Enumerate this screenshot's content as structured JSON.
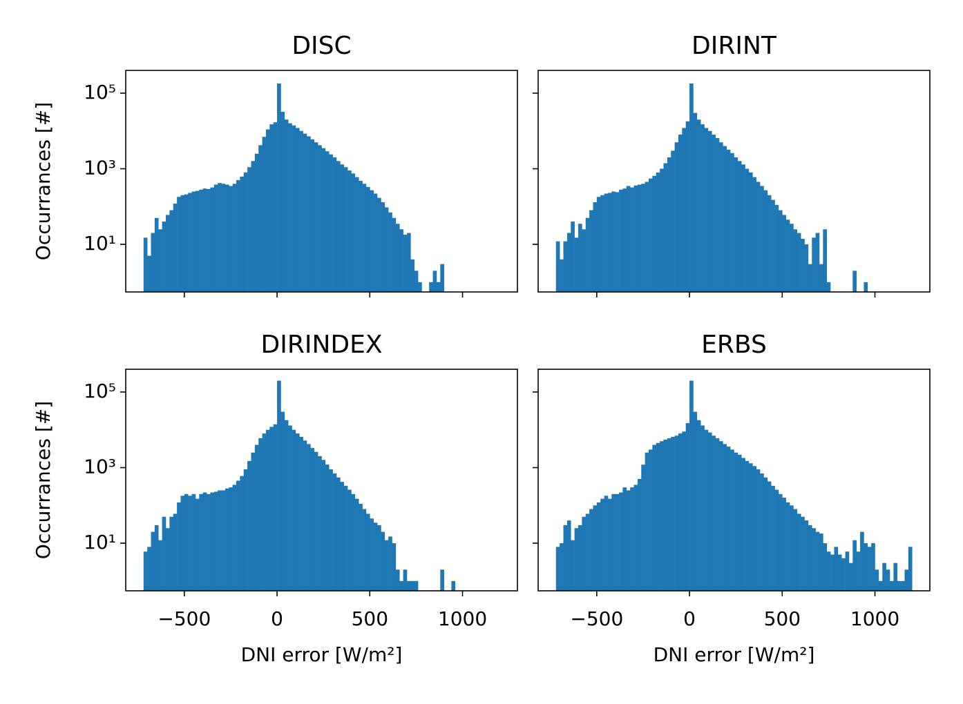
{
  "chart_data": [
    {
      "type": "histogram",
      "title": "DISC",
      "ylabel": "Occurrances [#]",
      "yscale": "log",
      "color": "#1f77b4",
      "xlim": [
        -816,
        1296
      ],
      "ylim": [
        0.55,
        400000
      ],
      "yticks": [
        {
          "value": 10,
          "label": "10¹"
        },
        {
          "value": 1000,
          "label": "10³"
        },
        {
          "value": 100000,
          "label": "10⁵"
        }
      ],
      "bins": [
        -720,
        -700,
        -680,
        -660,
        -640,
        -620,
        -600,
        -580,
        -560,
        -540,
        -520,
        -500,
        -480,
        -460,
        -440,
        -420,
        -400,
        -380,
        -360,
        -340,
        -320,
        -300,
        -280,
        -260,
        -240,
        -220,
        -200,
        -180,
        -160,
        -140,
        -120,
        -100,
        -80,
        -60,
        -40,
        -20,
        0,
        20,
        40,
        60,
        80,
        100,
        120,
        140,
        160,
        180,
        200,
        220,
        240,
        260,
        280,
        300,
        320,
        340,
        360,
        380,
        400,
        420,
        440,
        460,
        480,
        500,
        520,
        540,
        560,
        580,
        600,
        620,
        640,
        660,
        680,
        700,
        720,
        740,
        760,
        780,
        800,
        820,
        840,
        860,
        880,
        900,
        920,
        940,
        960,
        980,
        1000,
        1020,
        1040,
        1060,
        1080,
        1100,
        1120,
        1140,
        1160,
        1180,
        1200
      ],
      "values": [
        15,
        5,
        20,
        50,
        25,
        40,
        60,
        80,
        120,
        180,
        200,
        210,
        230,
        250,
        260,
        280,
        300,
        290,
        320,
        380,
        420,
        400,
        380,
        350,
        400,
        500,
        620,
        800,
        1100,
        1600,
        2500,
        4200,
        7000,
        11000,
        15000,
        17000,
        180000,
        32000,
        20000,
        16000,
        14000,
        12000,
        10000,
        8500,
        7200,
        6000,
        5000,
        4200,
        3500,
        2900,
        2400,
        2000,
        1600,
        1300,
        1100,
        900,
        750,
        600,
        480,
        400,
        330,
        270,
        220,
        170,
        130,
        95,
        70,
        50,
        35,
        25,
        18,
        20,
        4,
        2,
        1,
        0,
        0,
        1,
        2,
        1,
        3,
        0,
        0,
        0,
        0,
        0,
        0,
        0,
        0,
        0,
        0,
        0,
        0,
        0,
        0,
        0
      ]
    },
    {
      "type": "histogram",
      "title": "DIRINT",
      "yscale": "log",
      "color": "#1f77b4",
      "xlim": [
        -816,
        1296
      ],
      "ylim": [
        0.55,
        400000
      ],
      "bins": [
        -720,
        -700,
        -680,
        -660,
        -640,
        -620,
        -600,
        -580,
        -560,
        -540,
        -520,
        -500,
        -480,
        -460,
        -440,
        -420,
        -400,
        -380,
        -360,
        -340,
        -320,
        -300,
        -280,
        -260,
        -240,
        -220,
        -200,
        -180,
        -160,
        -140,
        -120,
        -100,
        -80,
        -60,
        -40,
        -20,
        0,
        20,
        40,
        60,
        80,
        100,
        120,
        140,
        160,
        180,
        200,
        220,
        240,
        260,
        280,
        300,
        320,
        340,
        360,
        380,
        400,
        420,
        440,
        460,
        480,
        500,
        520,
        540,
        560,
        580,
        600,
        620,
        640,
        660,
        680,
        700,
        720,
        740,
        760,
        780,
        800,
        820,
        840,
        860,
        880,
        900,
        920,
        940,
        960,
        980,
        1000,
        1020,
        1040,
        1060,
        1080,
        1100,
        1120,
        1140,
        1160,
        1180,
        1200
      ],
      "values": [
        12,
        4,
        12,
        20,
        40,
        15,
        35,
        25,
        50,
        80,
        130,
        180,
        200,
        220,
        230,
        250,
        240,
        280,
        300,
        350,
        320,
        360,
        380,
        400,
        450,
        550,
        650,
        800,
        1000,
        1400,
        2000,
        3000,
        5000,
        8000,
        12000,
        18000,
        180000,
        30000,
        20000,
        15000,
        12000,
        10000,
        8000,
        6500,
        5000,
        4000,
        3200,
        2600,
        2000,
        1600,
        1300,
        1000,
        800,
        600,
        450,
        350,
        270,
        200,
        150,
        110,
        80,
        60,
        45,
        35,
        25,
        20,
        14,
        10,
        3,
        15,
        20,
        3,
        25,
        1,
        0,
        0,
        0,
        0,
        0,
        0,
        2,
        0,
        0,
        1,
        0,
        0,
        0,
        0,
        0,
        0,
        0,
        0,
        0,
        0,
        0,
        0
      ]
    },
    {
      "type": "histogram",
      "title": "DIRINDEX",
      "xlabel": "DNI error [W/m²]",
      "ylabel": "Occurrances [#]",
      "yscale": "log",
      "color": "#1f77b4",
      "xlim": [
        -816,
        1296
      ],
      "ylim": [
        0.55,
        400000
      ],
      "xticks": [
        {
          "value": -500,
          "label": "−500"
        },
        0,
        500,
        1000
      ],
      "yticks": [
        {
          "value": 10,
          "label": "10¹"
        },
        {
          "value": 1000,
          "label": "10³"
        },
        {
          "value": 100000,
          "label": "10⁵"
        }
      ],
      "bins": [
        -720,
        -700,
        -680,
        -660,
        -640,
        -620,
        -600,
        -580,
        -560,
        -540,
        -520,
        -500,
        -480,
        -460,
        -440,
        -420,
        -400,
        -380,
        -360,
        -340,
        -320,
        -300,
        -280,
        -260,
        -240,
        -220,
        -200,
        -180,
        -160,
        -140,
        -120,
        -100,
        -80,
        -60,
        -40,
        -20,
        0,
        20,
        40,
        60,
        80,
        100,
        120,
        140,
        160,
        180,
        200,
        220,
        240,
        260,
        280,
        300,
        320,
        340,
        360,
        380,
        400,
        420,
        440,
        460,
        480,
        500,
        520,
        540,
        560,
        580,
        600,
        620,
        640,
        660,
        680,
        700,
        720,
        740,
        760,
        780,
        800,
        820,
        840,
        860,
        880,
        900,
        920,
        940,
        960,
        980,
        1000,
        1020,
        1040,
        1060,
        1080,
        1100,
        1120,
        1140,
        1160,
        1180,
        1200
      ],
      "values": [
        6,
        8,
        20,
        30,
        12,
        50,
        25,
        50,
        60,
        120,
        180,
        200,
        180,
        200,
        150,
        200,
        220,
        200,
        220,
        230,
        250,
        250,
        280,
        300,
        350,
        450,
        600,
        900,
        1500,
        2500,
        4000,
        6000,
        8000,
        10000,
        12000,
        14000,
        200000,
        30000,
        18000,
        13000,
        10000,
        8000,
        6500,
        5200,
        4200,
        3300,
        2600,
        2000,
        1600,
        1200,
        900,
        700,
        550,
        420,
        330,
        260,
        200,
        150,
        110,
        80,
        60,
        45,
        35,
        30,
        20,
        12,
        15,
        10,
        2,
        1,
        2,
        1,
        1,
        1,
        0,
        0,
        0,
        0,
        0,
        0,
        2,
        0,
        0,
        1,
        0,
        0,
        0,
        0,
        0,
        0,
        0,
        0,
        0,
        0,
        0,
        0
      ]
    },
    {
      "type": "histogram",
      "title": "ERBS",
      "xlabel": "DNI error [W/m²]",
      "yscale": "log",
      "color": "#1f77b4",
      "xlim": [
        -816,
        1296
      ],
      "ylim": [
        0.55,
        400000
      ],
      "xticks": [
        {
          "value": -500,
          "label": "−500"
        },
        0,
        500,
        1000
      ],
      "bins": [
        -720,
        -700,
        -680,
        -660,
        -640,
        -620,
        -600,
        -580,
        -560,
        -540,
        -520,
        -500,
        -480,
        -460,
        -440,
        -420,
        -400,
        -380,
        -360,
        -340,
        -320,
        -300,
        -280,
        -260,
        -240,
        -220,
        -200,
        -180,
        -160,
        -140,
        -120,
        -100,
        -80,
        -60,
        -40,
        -20,
        0,
        20,
        40,
        60,
        80,
        100,
        120,
        140,
        160,
        180,
        200,
        220,
        240,
        260,
        280,
        300,
        320,
        340,
        360,
        380,
        400,
        420,
        440,
        460,
        480,
        500,
        520,
        540,
        560,
        580,
        600,
        620,
        640,
        660,
        680,
        700,
        720,
        740,
        760,
        780,
        800,
        820,
        840,
        860,
        880,
        900,
        920,
        940,
        960,
        980,
        1000,
        1020,
        1040,
        1060,
        1080,
        1100,
        1120,
        1140,
        1160,
        1180,
        1200
      ],
      "values": [
        8,
        10,
        30,
        40,
        12,
        25,
        30,
        50,
        60,
        80,
        100,
        120,
        150,
        180,
        150,
        200,
        200,
        220,
        300,
        250,
        300,
        350,
        500,
        1200,
        2500,
        3000,
        4000,
        4500,
        5000,
        5500,
        6000,
        6500,
        7000,
        8000,
        9000,
        15000,
        200000,
        30000,
        18000,
        13000,
        10000,
        8500,
        7000,
        6000,
        5000,
        4200,
        3600,
        3000,
        2500,
        2200,
        1800,
        1500,
        1300,
        1100,
        900,
        700,
        550,
        430,
        330,
        260,
        200,
        160,
        120,
        100,
        80,
        60,
        50,
        40,
        30,
        25,
        20,
        18,
        10,
        6,
        5,
        8,
        5,
        4,
        6,
        3,
        12,
        6,
        20,
        10,
        8,
        10,
        2,
        1,
        3,
        2,
        1,
        3,
        1,
        1,
        2,
        8
      ]
    }
  ]
}
